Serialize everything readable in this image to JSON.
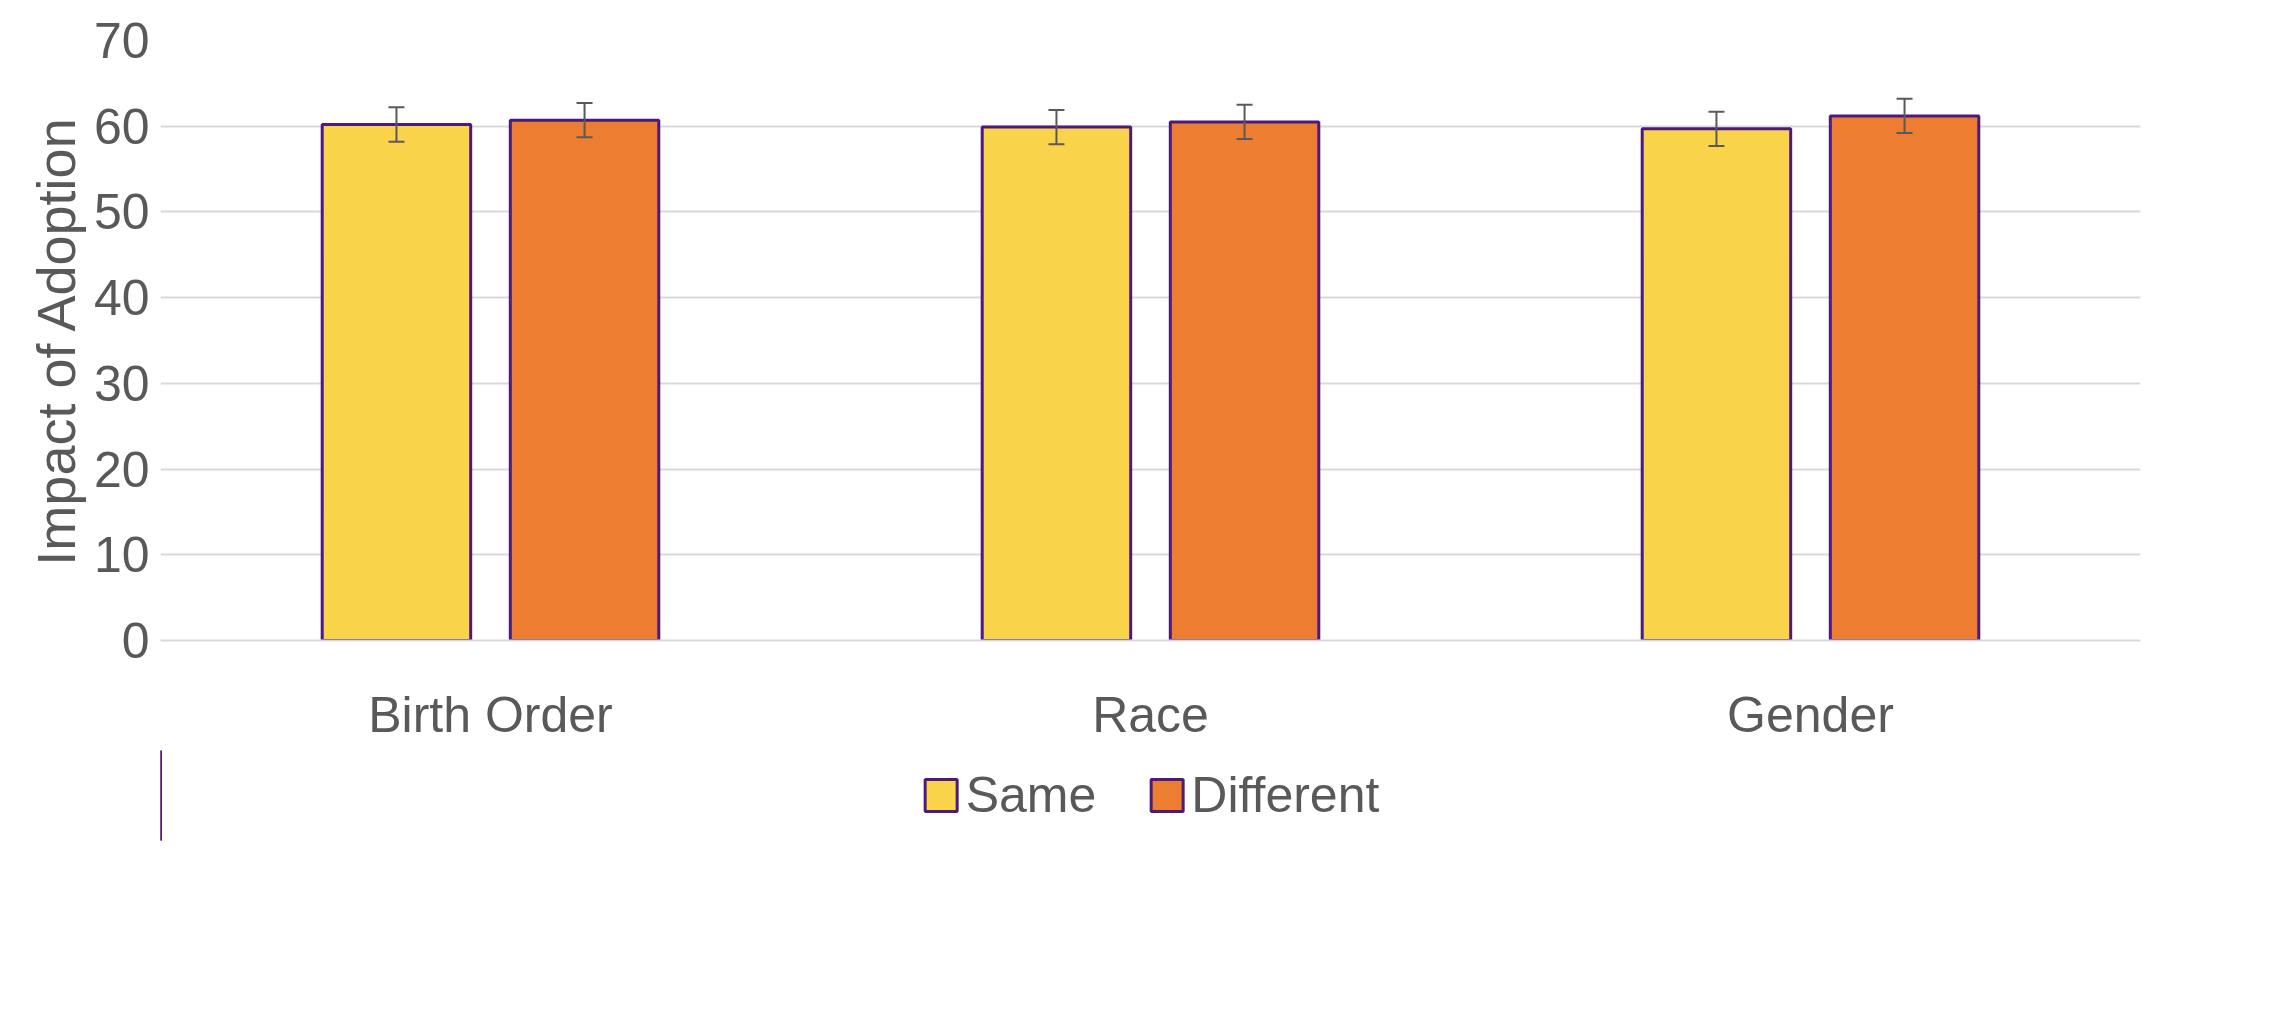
{
  "chart_data": {
    "type": "bar",
    "ylabel": "Impact of Adoption",
    "categories": [
      "Birth Order",
      "Race",
      "Gender"
    ],
    "series": [
      {
        "name": "Same",
        "color": "#f9d44a",
        "values": [
          60.2,
          59.9,
          59.7
        ],
        "errors": [
          2,
          2,
          2
        ]
      },
      {
        "name": "Different",
        "color": "#ed7d31",
        "values": [
          60.7,
          60.5,
          61.2
        ],
        "errors": [
          2,
          2,
          2
        ]
      }
    ],
    "ylim": [
      0,
      70
    ],
    "yticks": [
      0,
      10,
      20,
      30,
      40,
      50,
      60,
      70
    ],
    "grid": "y",
    "legend": "bottom"
  }
}
